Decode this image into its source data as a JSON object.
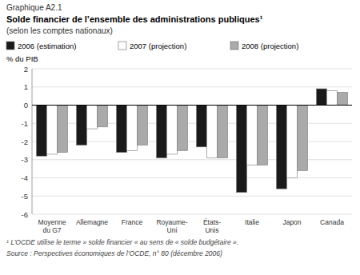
{
  "chart_data": {
    "type": "bar",
    "title": "Solde financier de l’ensemble des administrations publiques¹",
    "subtitle": "(selon les comptes nationaux)",
    "ylabel": "% du PIB",
    "annotations": [
      "Graphique A2.1",
      "¹ L’OCDE utilise le terme » solde financier « au sens de « solde budgétaire ».",
      "Source : Perspectives économiques de l’OCDE, n° 80 (décembre 2006)"
    ],
    "categories": [
      "Moyenne\ndu G7",
      "Allemagne",
      "France",
      "Royaume-\nUni",
      "États-\nUnis",
      "Italie",
      "Japon",
      "Canada"
    ],
    "series": [
      {
        "name": "2006 (estimation)",
        "color": "#1a1a1a",
        "values": [
          -2.8,
          -2.2,
          -2.6,
          -2.9,
          -2.3,
          -4.8,
          -4.6,
          0.9
        ]
      },
      {
        "name": "2007 (projection)",
        "color": "#ffffff",
        "values": [
          -2.7,
          -1.3,
          -2.5,
          -2.7,
          -2.9,
          -3.3,
          -4.0,
          0.8
        ]
      },
      {
        "name": "2008 (projection)",
        "color": "#aaaaaa",
        "values": [
          -2.6,
          -1.2,
          -2.2,
          -2.5,
          -2.9,
          -3.3,
          -3.6,
          0.7
        ]
      }
    ],
    "ylim": [
      -6,
      2
    ],
    "yticks": [
      -6,
      -5,
      -4,
      -3,
      -2,
      -1,
      0,
      1,
      2
    ],
    "grid": true,
    "legend": "top"
  }
}
